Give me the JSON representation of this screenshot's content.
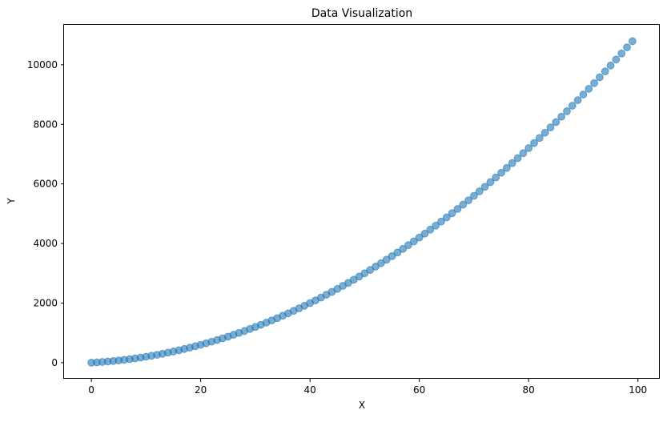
{
  "chart_data": {
    "type": "scatter",
    "title": "Data Visualization",
    "xlabel": "X",
    "ylabel": "Y",
    "xlim": [
      -5,
      104
    ],
    "ylim": [
      -540,
      11340
    ],
    "xticks": [
      0,
      20,
      40,
      60,
      80,
      100
    ],
    "yticks": [
      0,
      2000,
      4000,
      6000,
      8000,
      10000
    ],
    "grid": false,
    "legend": "none",
    "marker_color": "#1f77b4",
    "marker_alpha": 0.6,
    "series": [
      {
        "x": [
          0,
          1,
          2,
          3,
          4,
          5,
          6,
          7,
          8,
          9,
          10,
          11,
          12,
          13,
          14,
          15,
          16,
          17,
          18,
          19,
          20,
          21,
          22,
          23,
          24,
          25,
          26,
          27,
          28,
          29,
          30,
          31,
          32,
          33,
          34,
          35,
          36,
          37,
          38,
          39,
          40,
          41,
          42,
          43,
          44,
          45,
          46,
          47,
          48,
          49,
          50,
          51,
          52,
          53,
          54,
          55,
          56,
          57,
          58,
          59,
          60,
          61,
          62,
          63,
          64,
          65,
          66,
          67,
          68,
          69,
          70,
          71,
          72,
          73,
          74,
          75,
          76,
          77,
          78,
          79,
          80,
          81,
          82,
          83,
          84,
          85,
          86,
          87,
          88,
          89,
          90,
          91,
          92,
          93,
          94,
          95,
          96,
          97,
          98,
          99
        ],
        "y": [
          0,
          11,
          24,
          39,
          56,
          75,
          96,
          119,
          144,
          171,
          200,
          231,
          264,
          299,
          336,
          375,
          416,
          459,
          504,
          551,
          600,
          651,
          704,
          759,
          816,
          875,
          936,
          999,
          1064,
          1131,
          1200,
          1271,
          1344,
          1419,
          1496,
          1575,
          1656,
          1739,
          1824,
          1911,
          2000,
          2091,
          2184,
          2279,
          2376,
          2475,
          2576,
          2679,
          2784,
          2891,
          3000,
          3111,
          3224,
          3339,
          3456,
          3575,
          3696,
          3819,
          3944,
          4071,
          4200,
          4331,
          4464,
          4599,
          4736,
          4875,
          5016,
          5159,
          5304,
          5451,
          5600,
          5751,
          5904,
          6059,
          6216,
          6375,
          6536,
          6699,
          6864,
          7031,
          7200,
          7371,
          7544,
          7719,
          7896,
          8075,
          8256,
          8439,
          8624,
          8811,
          9000,
          9191,
          9384,
          9579,
          9776,
          9975,
          10176,
          10379,
          10584,
          10791
        ]
      }
    ]
  }
}
